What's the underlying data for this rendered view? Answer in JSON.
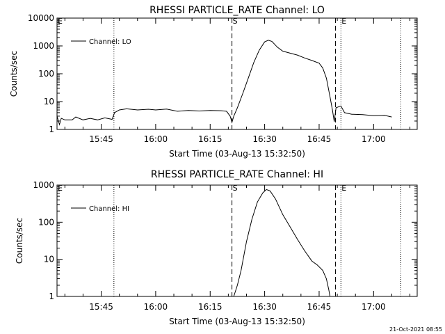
{
  "footer": {
    "timestamp": "21-Oct-2021 08:55"
  },
  "chart_data": [
    {
      "type": "line",
      "title": "RHESSI PARTICLE_RATE Channel: LO",
      "xlabel": "Start Time (03-Aug-13 15:32:50)",
      "ylabel": "Counts/sec",
      "y_scale": "log",
      "ylim": [
        1,
        10000
      ],
      "y_ticks": [
        1,
        10,
        100,
        1000,
        10000
      ],
      "y_tick_labels": [
        "1",
        "10",
        "100",
        "1000",
        "10000"
      ],
      "xlim": [
        "15:32:50",
        "17:12:00"
      ],
      "x_ticks": [
        "15:45",
        "16:00",
        "16:15",
        "16:30",
        "16:45",
        "17:00"
      ],
      "legend": {
        "position": "top-left",
        "entries": [
          "Channel: LO"
        ]
      },
      "markers": [
        {
          "label": "E",
          "time": "15:32:50",
          "style": "dotted"
        },
        {
          "label": "",
          "time": "15:48:30",
          "style": "dotted"
        },
        {
          "label": "S",
          "time": "16:21:00",
          "style": "dashed"
        },
        {
          "label": "",
          "time": "16:49:30",
          "style": "dashed"
        },
        {
          "label": "E",
          "time": "16:51:00",
          "style": "dotted"
        },
        {
          "label": "",
          "time": "17:07:30",
          "style": "dotted"
        }
      ],
      "series": [
        {
          "name": "Channel: LO",
          "points": [
            [
              "15:32:50",
              3.0
            ],
            [
              "15:33:30",
              1.5
            ],
            [
              "15:34:00",
              2.5
            ],
            [
              "15:35:00",
              2.2
            ],
            [
              "15:37:00",
              2.2
            ],
            [
              "15:38:00",
              2.8
            ],
            [
              "15:40:00",
              2.2
            ],
            [
              "15:42:00",
              2.5
            ],
            [
              "15:44:00",
              2.2
            ],
            [
              "15:46:00",
              2.6
            ],
            [
              "15:48:00",
              2.3
            ],
            [
              "15:48:40",
              4.0
            ],
            [
              "15:50:00",
              5.0
            ],
            [
              "15:52:00",
              5.5
            ],
            [
              "15:55:00",
              5.0
            ],
            [
              "15:58:00",
              5.3
            ],
            [
              "16:00:00",
              5.0
            ],
            [
              "16:03:00",
              5.4
            ],
            [
              "16:06:00",
              4.5
            ],
            [
              "16:09:00",
              4.8
            ],
            [
              "16:12:00",
              4.6
            ],
            [
              "16:15:00",
              4.8
            ],
            [
              "16:18:00",
              4.7
            ],
            [
              "16:19:30",
              4.5
            ],
            [
              "16:20:30",
              3.0
            ],
            [
              "16:21:00",
              1.8
            ],
            [
              "16:21:30",
              3.0
            ],
            [
              "16:22:30",
              6.0
            ],
            [
              "16:24:00",
              20
            ],
            [
              "16:25:30",
              70
            ],
            [
              "16:27:00",
              250
            ],
            [
              "16:28:30",
              700
            ],
            [
              "16:30:00",
              1400
            ],
            [
              "16:31:00",
              1600
            ],
            [
              "16:32:00",
              1450
            ],
            [
              "16:33:30",
              900
            ],
            [
              "16:35:00",
              650
            ],
            [
              "16:37:00",
              550
            ],
            [
              "16:39:00",
              470
            ],
            [
              "16:41:00",
              370
            ],
            [
              "16:43:00",
              300
            ],
            [
              "16:45:00",
              240
            ],
            [
              "16:46:00",
              160
            ],
            [
              "16:47:00",
              70
            ],
            [
              "16:48:00",
              15
            ],
            [
              "16:48:40",
              5.0
            ],
            [
              "16:49:10",
              1.9
            ],
            [
              "16:49:40",
              6.0
            ],
            [
              "16:51:00",
              7.0
            ],
            [
              "16:52:00",
              4.0
            ],
            [
              "16:54:00",
              3.5
            ],
            [
              "16:57:00",
              3.4
            ],
            [
              "17:00:00",
              3.1
            ],
            [
              "17:03:00",
              3.2
            ],
            [
              "17:05:00",
              2.8
            ]
          ]
        }
      ]
    },
    {
      "type": "line",
      "title": "RHESSI PARTICLE_RATE Channel: HI",
      "xlabel": "Start Time (03-Aug-13 15:32:50)",
      "ylabel": "Counts/sec",
      "y_scale": "log",
      "ylim": [
        1,
        1000
      ],
      "y_ticks": [
        1,
        10,
        100,
        1000
      ],
      "y_tick_labels": [
        "1",
        "10",
        "100",
        "1000"
      ],
      "xlim": [
        "15:32:50",
        "17:12:00"
      ],
      "x_ticks": [
        "15:45",
        "16:00",
        "16:15",
        "16:30",
        "16:45",
        "17:00"
      ],
      "legend": {
        "position": "top-left",
        "entries": [
          "Channel: HI"
        ]
      },
      "markers": [
        {
          "label": "E",
          "time": "15:32:50",
          "style": "dotted"
        },
        {
          "label": "",
          "time": "15:48:30",
          "style": "dotted"
        },
        {
          "label": "S",
          "time": "16:21:00",
          "style": "dashed"
        },
        {
          "label": "",
          "time": "16:49:30",
          "style": "dashed"
        },
        {
          "label": "E",
          "time": "16:51:00",
          "style": "dotted"
        },
        {
          "label": "",
          "time": "17:07:30",
          "style": "dotted"
        }
      ],
      "series": [
        {
          "name": "Channel: HI",
          "points": [
            [
              "16:21:30",
              1.0
            ],
            [
              "16:22:30",
              2.0
            ],
            [
              "16:23:30",
              5.0
            ],
            [
              "16:25:00",
              30
            ],
            [
              "16:26:30",
              120
            ],
            [
              "16:28:00",
              350
            ],
            [
              "16:29:30",
              620
            ],
            [
              "16:30:30",
              760
            ],
            [
              "16:31:30",
              700
            ],
            [
              "16:33:00",
              420
            ],
            [
              "16:35:00",
              160
            ],
            [
              "16:37:00",
              75
            ],
            [
              "16:39:00",
              35
            ],
            [
              "16:41:00",
              17
            ],
            [
              "16:43:00",
              9
            ],
            [
              "16:44:30",
              7
            ],
            [
              "16:46:00",
              5
            ],
            [
              "16:47:00",
              3
            ],
            [
              "16:47:40",
              1.5
            ],
            [
              "16:48:00",
              1.0
            ]
          ]
        }
      ]
    }
  ]
}
